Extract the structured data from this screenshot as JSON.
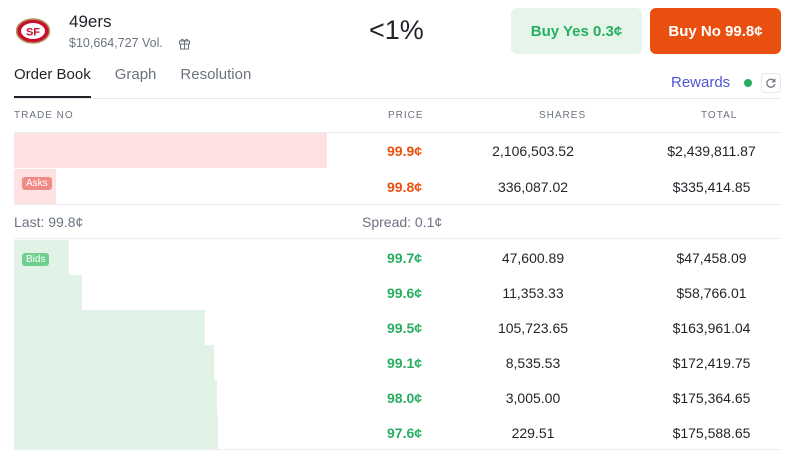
{
  "market": {
    "name": "49ers",
    "volume": "$10,664,727 Vol.",
    "odds": "<1%",
    "logo_text": "SF"
  },
  "buttons": {
    "yes": "Buy Yes 0.3¢",
    "no": "Buy No 99.8¢"
  },
  "tabs": [
    "Order Book",
    "Graph",
    "Resolution"
  ],
  "rewards": "Rewards",
  "columns": {
    "trade": "TRADE NO",
    "price": "PRICE",
    "shares": "SHARES",
    "total": "TOTAL"
  },
  "asks_label": "Asks",
  "bids_label": "Bids",
  "asks": [
    {
      "price": "99.9¢",
      "shares": "2,106,503.52",
      "total": "$2,439,811.87"
    },
    {
      "price": "99.8¢",
      "shares": "336,087.02",
      "total": "$335,414.85"
    }
  ],
  "last": "Last: 99.8¢",
  "spread": "Spread: 0.1¢",
  "bids": [
    {
      "price": "99.7¢",
      "shares": "47,600.89",
      "total": "$47,458.09"
    },
    {
      "price": "99.6¢",
      "shares": "11,353.33",
      "total": "$58,766.01"
    },
    {
      "price": "99.5¢",
      "shares": "105,723.65",
      "total": "$163,961.04"
    },
    {
      "price": "99.1¢",
      "shares": "8,535.53",
      "total": "$172,419.75"
    },
    {
      "price": "98.0¢",
      "shares": "3,005.00",
      "total": "$175,364.65"
    },
    {
      "price": "97.6¢",
      "shares": "229.51",
      "total": "$175,588.65"
    }
  ],
  "colors": {
    "accent_no": "#e9500f",
    "accent_yes": "#27ae60",
    "rewards": "#4f56d6"
  }
}
